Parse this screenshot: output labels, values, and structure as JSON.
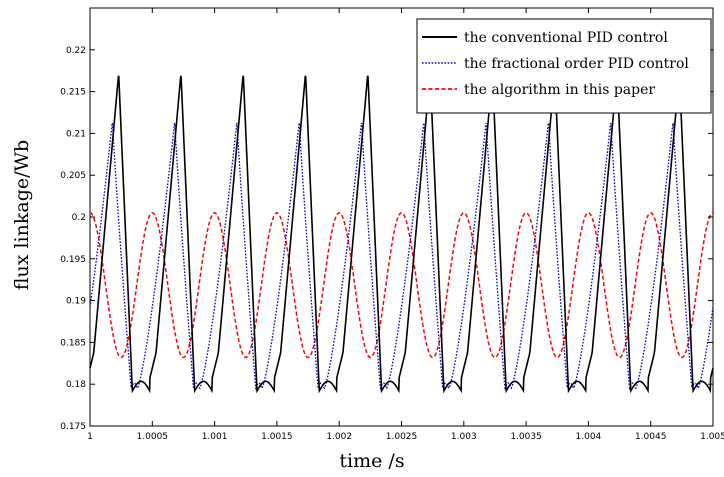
{
  "chart_data": {
    "type": "line",
    "title": "",
    "xlabel": "time /s",
    "ylabel": "flux linkage/Wb",
    "xlim": [
      1.0,
      1.005
    ],
    "ylim": [
      0.175,
      0.225
    ],
    "x_ticks": [
      1.0,
      1.0005,
      1.001,
      1.0015,
      1.002,
      1.0025,
      1.003,
      1.0035,
      1.004,
      1.0045,
      1.005
    ],
    "x_tick_labels": [
      "1",
      "1.0005",
      "1.001",
      "1.0015",
      "1.002",
      "1.0025",
      "1.003",
      "1.0035",
      "1.004",
      "1.0045",
      "1.005"
    ],
    "y_ticks": [
      0.175,
      0.18,
      0.185,
      0.19,
      0.195,
      0.2,
      0.205,
      0.21,
      0.215,
      0.22
    ],
    "y_tick_labels": [
      "0.175",
      "0.18",
      "0.185",
      "0.19",
      "0.195",
      "0.2",
      "0.205",
      "0.21",
      "0.215",
      "0.22"
    ],
    "grid": false,
    "legend_position": "top-right",
    "period": 0.0005,
    "series": [
      {
        "name": "the conventional PID control",
        "color": "#000000",
        "style": "solid",
        "peak_times": [
          1.00023,
          1.00073,
          1.00123,
          1.00173,
          1.00223,
          1.00273,
          1.00323,
          1.00373,
          1.00423,
          1.00473
        ],
        "min": 0.1792,
        "max": 0.2172
      },
      {
        "name": "the fractional order PID control",
        "color": "#0000cc",
        "style": "dotted",
        "peak_times": [
          1.00018,
          1.00068,
          1.00118,
          1.00168,
          1.00218,
          1.00268,
          1.00318,
          1.00368,
          1.00418,
          1.00468
        ],
        "min": 0.1795,
        "max": 0.2115
      },
      {
        "name": "the algorithm in this paper",
        "color": "#ff0000",
        "style": "dashed",
        "peak_times": [
          1.0,
          1.0005,
          1.001,
          1.0015,
          1.002,
          1.0025,
          1.003,
          1.0035,
          1.004,
          1.0045,
          1.005
        ],
        "min": 0.1832,
        "max": 0.2005
      }
    ]
  }
}
